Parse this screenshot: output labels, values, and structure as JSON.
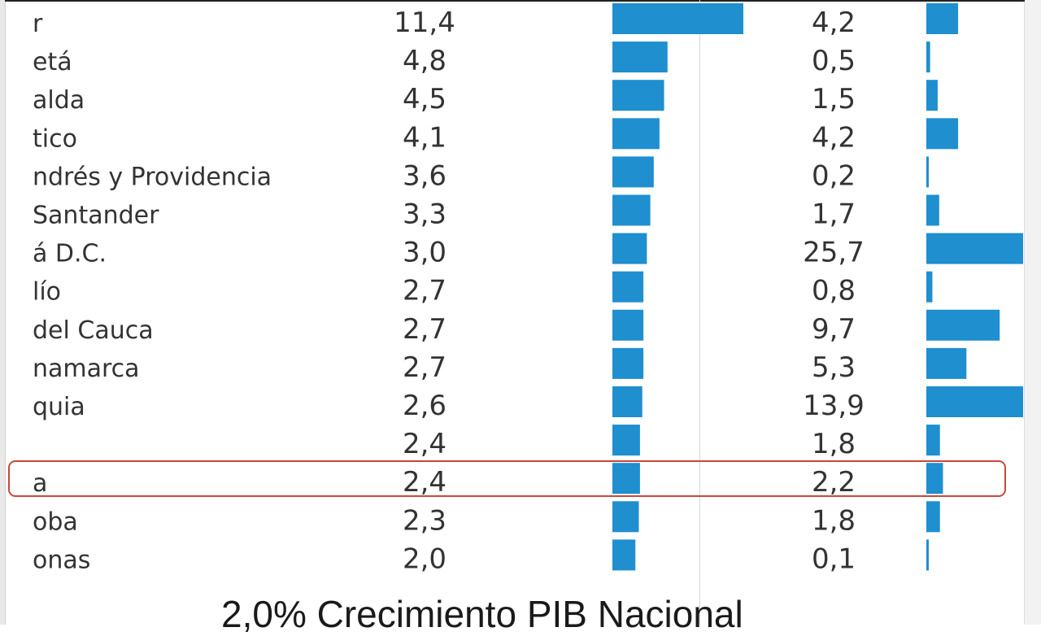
{
  "chart_data": {
    "type": "bar",
    "categories": [
      "r",
      "etá",
      "alda",
      "tico",
      "ndrés y Providencia",
      "Santander",
      "á D.C.",
      "lío",
      "del Cauca",
      "namarca",
      "quia",
      "",
      "a",
      "oba",
      "onas"
    ],
    "series": [
      {
        "values": [
          11.4,
          4.8,
          4.5,
          4.1,
          3.6,
          3.3,
          3.0,
          2.7,
          2.7,
          2.7,
          2.6,
          2.4,
          2.4,
          2.3,
          2.0
        ],
        "labels": [
          "11,4",
          "4,8",
          "4,5",
          "4,1",
          "3,6",
          "3,3",
          "3,0",
          "2,7",
          "2,7",
          "2,7",
          "2,6",
          "2,4",
          "2,4",
          "2,3",
          "2,0"
        ],
        "color": "#1f8fcf"
      },
      {
        "values": [
          4.2,
          0.5,
          1.5,
          4.2,
          0.2,
          1.7,
          25.7,
          0.8,
          9.7,
          5.3,
          13.9,
          1.8,
          2.2,
          1.8,
          0.1
        ],
        "labels": [
          "4,2",
          "0,5",
          "1,5",
          "4,2",
          "0,2",
          "1,7",
          "25,7",
          "0,8",
          "9,7",
          "5,3",
          "13,9",
          "1,8",
          "2,2",
          "1,8",
          "0,1"
        ],
        "color": "#1f8fcf"
      }
    ],
    "highlighted_row": 12,
    "caption": "2,0% Crecimiento PIB Nacional",
    "legend": "none",
    "grid": false
  }
}
